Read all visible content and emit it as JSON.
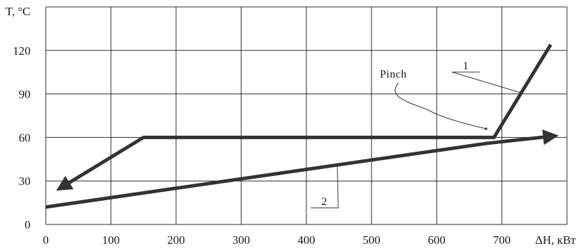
{
  "chart_data": {
    "type": "line",
    "title": "",
    "xlabel": "ΔH, кВт",
    "ylabel": "T, °C",
    "xlim": [
      0,
      800
    ],
    "ylim": [
      0,
      150
    ],
    "x_ticks": [
      0,
      100,
      200,
      300,
      400,
      500,
      600,
      700
    ],
    "y_ticks": [
      0,
      30,
      60,
      90,
      120
    ],
    "grid": true,
    "series": [
      {
        "label": "1",
        "points": [
          [
            775,
            124
          ],
          [
            688,
            60
          ],
          [
            150,
            60
          ],
          [
            22,
            25
          ]
        ],
        "arrow_end": true
      },
      {
        "label": "2",
        "points": [
          [
            0,
            12
          ],
          [
            678,
            56
          ],
          [
            780,
            61
          ]
        ],
        "arrow_end": true
      }
    ],
    "annotations": [
      {
        "text": "Pinch",
        "target": [
          686,
          61
        ]
      }
    ],
    "colors": {
      "line": "#333333",
      "grid": "#2a2a2a"
    }
  }
}
